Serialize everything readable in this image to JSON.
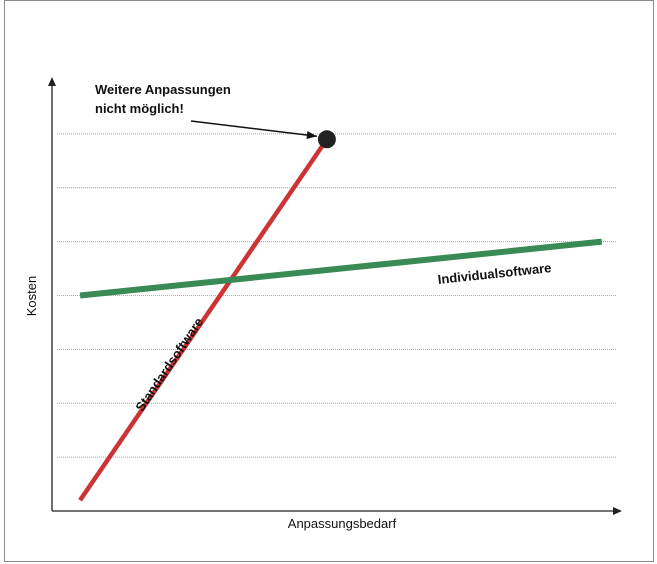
{
  "chart_data": {
    "type": "line",
    "title": "",
    "xlabel": "Anpassungsbedarf",
    "ylabel": "Kosten",
    "xlim": [
      0,
      10
    ],
    "ylim": [
      0,
      8
    ],
    "grid": true,
    "gridlines_y": [
      1,
      2,
      3,
      4,
      5,
      6,
      7
    ],
    "series": [
      {
        "name": "Standardsoftware",
        "x": [
          0.5,
          4.9
        ],
        "y": [
          0.2,
          6.9
        ]
      },
      {
        "name": "Individualsoftware",
        "x": [
          0.5,
          9.8
        ],
        "y": [
          4.0,
          5.0
        ]
      }
    ],
    "colors": {
      "Standardsoftware": "#cc3333",
      "Individualsoftware": "#3a8a55",
      "axis": "#222222",
      "grid": "#aaaaaa",
      "endpoint": "#222222"
    },
    "annotation": {
      "lines": [
        "Weitere Anpassungen",
        "nicht möglich!"
      ],
      "target_series": "Standardsoftware"
    }
  }
}
